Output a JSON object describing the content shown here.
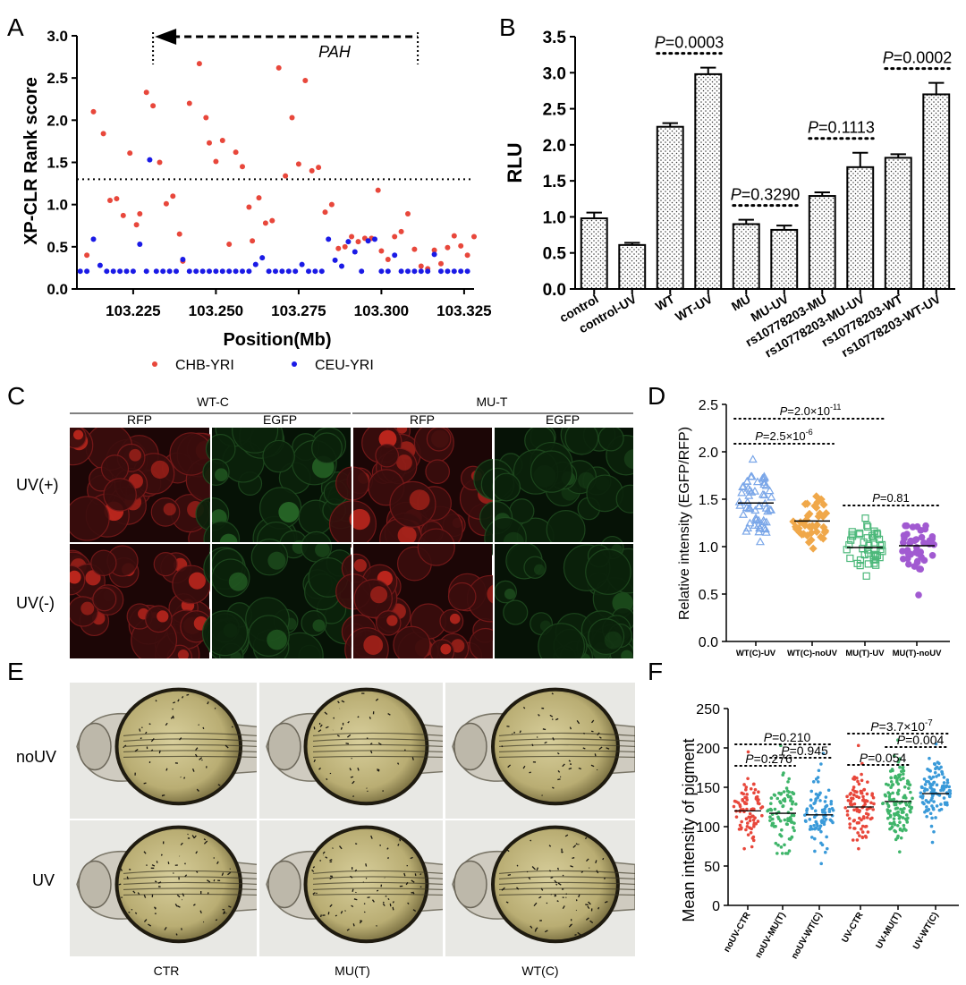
{
  "panels": {
    "A": {
      "letter": "A",
      "gene_label": "PAH",
      "ylabel": "XP-CLR Rank score",
      "xlabel": "Position(Mb)",
      "legend": [
        "CHB-YRI",
        "CEU-YRI"
      ],
      "colors": {
        "CHB-YRI": "#e8473b",
        "CEU-YRI": "#1a1ae6"
      }
    },
    "B": {
      "letter": "B",
      "ylabel": "RLU",
      "pvalues": [
        "=0.0003",
        "=0.3290",
        "=0.1113",
        "=0.0002"
      ]
    },
    "C": {
      "letter": "C",
      "groups": [
        "WT-C",
        "MU-T"
      ],
      "channels": [
        "RFP",
        "EGFP",
        "RFP",
        "EGFP"
      ],
      "rows": [
        "UV(+)",
        "UV(-)"
      ]
    },
    "D": {
      "letter": "D",
      "ylabel": "Relative intensity (EGFP/RFP)",
      "pvalues": [
        {
          "pre": "=2.0×10",
          "sup": "-11"
        },
        {
          "pre": "=2.5×10",
          "sup": "-6"
        },
        {
          "pre": "=0.81",
          "sup": ""
        }
      ],
      "colors": [
        "#7aa6e8",
        "#f0a84a",
        "#4cb87a",
        "#a15ad1"
      ]
    },
    "E": {
      "letter": "E",
      "rows": [
        "noUV",
        "UV"
      ],
      "columns": [
        "CTR",
        "MU(T)",
        "WT(C)"
      ]
    },
    "F": {
      "letter": "F",
      "ylabel": "Mean intensity of pigment",
      "pvalues": [
        {
          "pre": "=0.210",
          "sup": ""
        },
        {
          "pre": "=0.945",
          "sup": ""
        },
        {
          "pre": "=0.276",
          "sup": ""
        },
        {
          "pre": "=3.7×10",
          "sup": "-7"
        },
        {
          "pre": "=0.004",
          "sup": ""
        },
        {
          "pre": "=0.054",
          "sup": ""
        }
      ],
      "colors": [
        "#e8473b",
        "#3fb56a",
        "#3a9ad9",
        "#e8473b",
        "#3fb56a",
        "#3a9ad9"
      ]
    }
  },
  "chart_data": [
    {
      "id": "A",
      "type": "scatter",
      "ylabel": "XP-CLR Rank score",
      "xlabel": "Position(Mb)",
      "xlim": [
        103.208,
        103.328
      ],
      "ylim": [
        0.0,
        3.0
      ],
      "xticks": [
        103.225,
        103.25,
        103.275,
        103.3,
        103.325
      ],
      "yticks": [
        0.0,
        0.5,
        1.0,
        1.5,
        2.0,
        2.5,
        3.0
      ],
      "threshold": 1.3,
      "gene_span": [
        103.231,
        103.311
      ],
      "series": [
        {
          "name": "CHB-YRI",
          "points": [
            [
              103.211,
              0.4
            ],
            [
              103.213,
              2.1
            ],
            [
              103.216,
              1.84
            ],
            [
              103.218,
              1.05
            ],
            [
              103.22,
              1.07
            ],
            [
              103.222,
              0.87
            ],
            [
              103.224,
              1.61
            ],
            [
              103.226,
              0.76
            ],
            [
              103.227,
              0.89
            ],
            [
              103.229,
              2.33
            ],
            [
              103.231,
              2.17
            ],
            [
              103.233,
              1.5
            ],
            [
              103.235,
              1.01
            ],
            [
              103.237,
              1.1
            ],
            [
              103.239,
              0.65
            ],
            [
              103.24,
              0.33
            ],
            [
              103.242,
              2.2
            ],
            [
              103.245,
              2.67
            ],
            [
              103.247,
              2.03
            ],
            [
              103.248,
              1.73
            ],
            [
              103.25,
              1.51
            ],
            [
              103.252,
              1.76
            ],
            [
              103.254,
              0.53
            ],
            [
              103.256,
              1.62
            ],
            [
              103.258,
              1.45
            ],
            [
              103.26,
              0.97
            ],
            [
              103.261,
              0.57
            ],
            [
              103.263,
              1.08
            ],
            [
              103.265,
              0.78
            ],
            [
              103.267,
              0.81
            ],
            [
              103.269,
              2.62
            ],
            [
              103.271,
              1.34
            ],
            [
              103.273,
              2.03
            ],
            [
              103.275,
              1.48
            ],
            [
              103.277,
              2.47
            ],
            [
              103.279,
              1.4
            ],
            [
              103.281,
              1.44
            ],
            [
              103.283,
              0.91
            ],
            [
              103.285,
              1.0
            ],
            [
              103.287,
              0.48
            ],
            [
              103.289,
              0.5
            ],
            [
              103.291,
              0.62
            ],
            [
              103.293,
              0.56
            ],
            [
              103.295,
              0.6
            ],
            [
              103.297,
              0.6
            ],
            [
              103.299,
              1.17
            ],
            [
              103.3,
              0.45
            ],
            [
              103.302,
              0.35
            ],
            [
              103.304,
              0.62
            ],
            [
              103.306,
              0.68
            ],
            [
              103.308,
              0.89
            ],
            [
              103.31,
              0.47
            ],
            [
              103.312,
              0.27
            ],
            [
              103.314,
              0.24
            ],
            [
              103.316,
              0.46
            ],
            [
              103.318,
              0.3
            ],
            [
              103.32,
              0.49
            ],
            [
              103.322,
              0.63
            ],
            [
              103.324,
              0.51
            ],
            [
              103.326,
              0.4
            ],
            [
              103.328,
              0.62
            ]
          ]
        },
        {
          "name": "CEU-YRI",
          "points": [
            [
              103.209,
              0.21
            ],
            [
              103.211,
              0.21
            ],
            [
              103.213,
              0.59
            ],
            [
              103.215,
              0.28
            ],
            [
              103.217,
              0.21
            ],
            [
              103.219,
              0.21
            ],
            [
              103.221,
              0.21
            ],
            [
              103.223,
              0.21
            ],
            [
              103.225,
              0.21
            ],
            [
              103.227,
              0.53
            ],
            [
              103.229,
              0.21
            ],
            [
              103.23,
              1.53
            ],
            [
              103.232,
              0.21
            ],
            [
              103.234,
              0.21
            ],
            [
              103.236,
              0.21
            ],
            [
              103.238,
              0.21
            ],
            [
              103.24,
              0.35
            ],
            [
              103.242,
              0.21
            ],
            [
              103.244,
              0.21
            ],
            [
              103.246,
              0.21
            ],
            [
              103.248,
              0.21
            ],
            [
              103.25,
              0.21
            ],
            [
              103.252,
              0.21
            ],
            [
              103.254,
              0.21
            ],
            [
              103.256,
              0.21
            ],
            [
              103.258,
              0.21
            ],
            [
              103.26,
              0.21
            ],
            [
              103.262,
              0.29
            ],
            [
              103.264,
              0.37
            ],
            [
              103.266,
              0.21
            ],
            [
              103.268,
              0.21
            ],
            [
              103.27,
              0.21
            ],
            [
              103.272,
              0.21
            ],
            [
              103.274,
              0.21
            ],
            [
              103.276,
              0.29
            ],
            [
              103.278,
              0.21
            ],
            [
              103.28,
              0.21
            ],
            [
              103.282,
              0.21
            ],
            [
              103.284,
              0.59
            ],
            [
              103.286,
              0.34
            ],
            [
              103.288,
              0.27
            ],
            [
              103.29,
              0.56
            ],
            [
              103.292,
              0.44
            ],
            [
              103.294,
              0.21
            ],
            [
              103.296,
              0.57
            ],
            [
              103.298,
              0.59
            ],
            [
              103.3,
              0.21
            ],
            [
              103.302,
              0.21
            ],
            [
              103.304,
              0.4
            ],
            [
              103.306,
              0.21
            ],
            [
              103.308,
              0.21
            ],
            [
              103.31,
              0.21
            ],
            [
              103.312,
              0.21
            ],
            [
              103.314,
              0.21
            ],
            [
              103.316,
              0.41
            ],
            [
              103.318,
              0.21
            ],
            [
              103.32,
              0.21
            ],
            [
              103.322,
              0.21
            ],
            [
              103.324,
              0.21
            ],
            [
              103.326,
              0.21
            ]
          ]
        }
      ]
    },
    {
      "id": "B",
      "type": "bar",
      "ylabel": "RLU",
      "ylim": [
        0.0,
        3.5
      ],
      "yticks": [
        0.0,
        0.5,
        1.0,
        1.5,
        2.0,
        2.5,
        3.0,
        3.5
      ],
      "categories": [
        "control",
        "control-UV",
        "WT",
        "WT-UV",
        "MU",
        "MU-UV",
        "rs10778203-MU",
        "rs10778203-MU-UV",
        "rs10778203-WT",
        "rs10778203-WT-UV"
      ],
      "values": [
        0.98,
        0.61,
        2.25,
        2.98,
        0.9,
        0.82,
        1.29,
        1.69,
        1.82,
        2.7
      ],
      "errors": [
        0.08,
        0.03,
        0.05,
        0.09,
        0.06,
        0.06,
        0.05,
        0.2,
        0.05,
        0.16
      ],
      "comparisons": [
        {
          "pair": [
            2,
            3
          ],
          "p": "=0.0003"
        },
        {
          "pair": [
            4,
            5
          ],
          "p": "=0.3290"
        },
        {
          "pair": [
            6,
            7
          ],
          "p": "=0.1113"
        },
        {
          "pair": [
            8,
            9
          ],
          "p": "=0.0002"
        }
      ]
    },
    {
      "id": "D",
      "type": "scatter",
      "ylabel": "Relative intensity (EGFP/RFP)",
      "ylim": [
        0.0,
        2.5
      ],
      "yticks": [
        0.0,
        0.5,
        1.0,
        1.5,
        2.0,
        2.5
      ],
      "categories": [
        "WT(C)-UV",
        "WT(C)-noUV",
        "MU(T)-UV",
        "MU(T)-noUV"
      ],
      "medians": [
        1.46,
        1.27,
        0.99,
        1.01
      ],
      "ranges": [
        [
          1.05,
          1.92
        ],
        [
          0.98,
          1.53
        ],
        [
          0.69,
          1.3
        ],
        [
          0.49,
          1.22
        ]
      ],
      "counts": [
        60,
        40,
        45,
        45
      ],
      "markers": [
        "triangle",
        "diamond",
        "square",
        "circle"
      ],
      "comparisons": [
        {
          "pair": [
            0,
            2
          ],
          "p": "=2.0×10-11"
        },
        {
          "pair": [
            0,
            1
          ],
          "p": "=2.5×10-6"
        },
        {
          "pair": [
            2,
            3
          ],
          "p": "=0.81"
        }
      ]
    },
    {
      "id": "F",
      "type": "scatter",
      "ylabel": "Mean intensity of pigment",
      "ylim": [
        0,
        250
      ],
      "yticks": [
        0,
        50,
        100,
        150,
        200,
        250
      ],
      "categories": [
        "noUV-CTR",
        "noUV-MU(T)",
        "noUV-WT(C)",
        "UV-CTR",
        "UV-MU(T)",
        "UV-WT(C)"
      ],
      "medians": [
        120,
        117,
        115,
        125,
        132,
        142
      ],
      "ranges": [
        [
          72,
          195
        ],
        [
          66,
          203
        ],
        [
          53,
          193
        ],
        [
          72,
          203
        ],
        [
          68,
          210
        ],
        [
          80,
          205
        ]
      ],
      "counts": [
        80,
        90,
        85,
        100,
        130,
        110
      ],
      "comparisons": [
        {
          "pair": [
            0,
            2
          ],
          "p": "=0.210"
        },
        {
          "pair": [
            1,
            2
          ],
          "p": "=0.945"
        },
        {
          "pair": [
            0,
            1
          ],
          "p": "=0.276"
        },
        {
          "pair": [
            3,
            5
          ],
          "p": "=3.7×10-7"
        },
        {
          "pair": [
            4,
            5
          ],
          "p": "=0.004"
        },
        {
          "pair": [
            3,
            4
          ],
          "p": "=0.054"
        }
      ]
    }
  ]
}
